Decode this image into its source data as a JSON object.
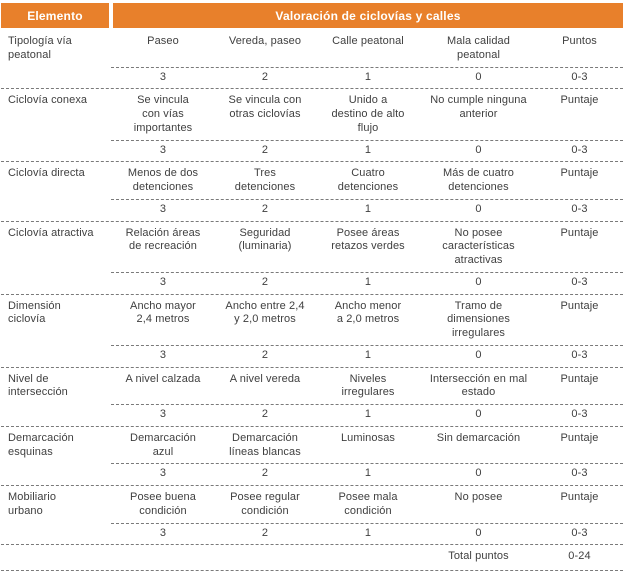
{
  "header": {
    "element_label": "Elemento",
    "title": "Valoración de ciclovías y calles"
  },
  "rows": [
    {
      "element": "Tipología vía\npeatonal",
      "options": [
        "Paseo",
        "Vereda, paseo",
        "Calle peatonal",
        "Mala calidad\npeatonal"
      ],
      "points_label": "Puntos",
      "scores": [
        "3",
        "2",
        "1",
        "0"
      ],
      "range": "0-3"
    },
    {
      "element": "Ciclovía conexa",
      "options": [
        "Se vincula\ncon vías\nimportantes",
        "Se vincula con\notras ciclovías",
        "Unido a\ndestino de alto\nflujo",
        "No cumple ninguna\nanterior"
      ],
      "points_label": "Puntaje",
      "scores": [
        "3",
        "2",
        "1",
        "0"
      ],
      "range": "0-3"
    },
    {
      "element": "Ciclovía directa",
      "options": [
        "Menos de dos\ndetenciones",
        "Tres\ndetenciones",
        "Cuatro\ndetenciones",
        "Más de cuatro\ndetenciones"
      ],
      "points_label": "Puntaje",
      "scores": [
        "3",
        "2",
        "1",
        "0"
      ],
      "range": "0-3"
    },
    {
      "element": "Ciclovía atractiva",
      "options": [
        "Relación áreas\nde recreación",
        "Seguridad\n(luminaria)",
        "Posee áreas\nretazos verdes",
        "No posee\ncaracterísticas\natractivas"
      ],
      "points_label": "Puntaje",
      "scores": [
        "3",
        "2",
        "1",
        "0"
      ],
      "range": "0-3"
    },
    {
      "element": "Dimensión\nciclovía",
      "options": [
        "Ancho mayor\n2,4 metros",
        "Ancho entre 2,4\ny 2,0 metros",
        "Ancho menor\na 2,0 metros",
        "Tramo de\ndimensiones\nirregulares"
      ],
      "points_label": "Puntaje",
      "scores": [
        "3",
        "2",
        "1",
        "0"
      ],
      "range": "0-3"
    },
    {
      "element": "Nivel de\nintersección",
      "options": [
        "A nivel calzada",
        "A nivel vereda",
        "Niveles\nirregulares",
        "Intersección en mal\nestado"
      ],
      "points_label": "Puntaje",
      "scores": [
        "3",
        "2",
        "1",
        "0"
      ],
      "range": "0-3"
    },
    {
      "element": "Demarcación\nesquinas",
      "options": [
        "Demarcación\nazul",
        "Demarcación\nlíneas blancas",
        "Luminosas",
        "Sin demarcación"
      ],
      "points_label": "Puntaje",
      "scores": [
        "3",
        "2",
        "1",
        "0"
      ],
      "range": "0-3"
    },
    {
      "element": "Mobiliario\nurbano",
      "options": [
        "Posee buena\ncondición",
        "Posee regular\ncondición",
        "Posee mala\ncondición",
        "No posee"
      ],
      "points_label": "Puntaje",
      "scores": [
        "3",
        "2",
        "1",
        "0"
      ],
      "range": "0-3"
    }
  ],
  "footer": {
    "total_label": "Total puntos",
    "total_range": "0-24"
  },
  "colors": {
    "accent": "#E8802B",
    "text": "#3F3F3F",
    "line": "#7A7A7A",
    "header_text": "#FFFFFF"
  }
}
